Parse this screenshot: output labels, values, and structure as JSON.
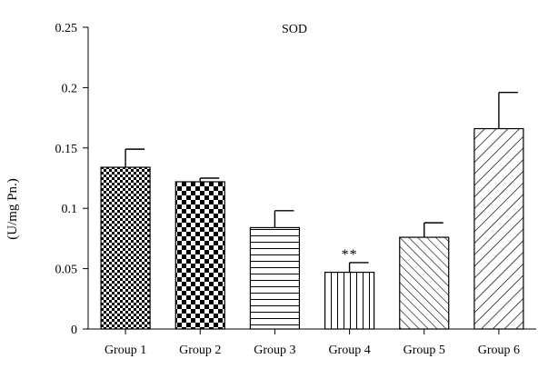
{
  "chart_data": {
    "type": "bar",
    "title": "SOD",
    "xlabel": "",
    "ylabel": "(U/mg Pn.)",
    "ylim": [
      0,
      0.25
    ],
    "yticks": [
      "0",
      "0.05",
      "0.1",
      "0.15",
      "0.2",
      "0.25"
    ],
    "ytick_values": [
      0,
      0.05,
      0.1,
      0.15,
      0.2,
      0.25
    ],
    "categories": [
      "Group 1",
      "Group 2",
      "Group 3",
      "Group 4",
      "Group 5",
      "Group 6"
    ],
    "values": [
      0.134,
      0.122,
      0.084,
      0.047,
      0.076,
      0.166
    ],
    "errors": [
      0.015,
      0.003,
      0.014,
      0.008,
      0.012,
      0.03
    ],
    "patterns": [
      "dense-checker",
      "checker",
      "horizontal-lines",
      "vertical-lines",
      "diagonal-lines",
      "wide-diagonal-lines"
    ],
    "annotations": [
      {
        "category": "Group 4",
        "text": "**"
      }
    ],
    "grid": false,
    "colors": {
      "bar_stroke": "#000000",
      "fill": "#000000",
      "background": "#ffffff"
    }
  }
}
